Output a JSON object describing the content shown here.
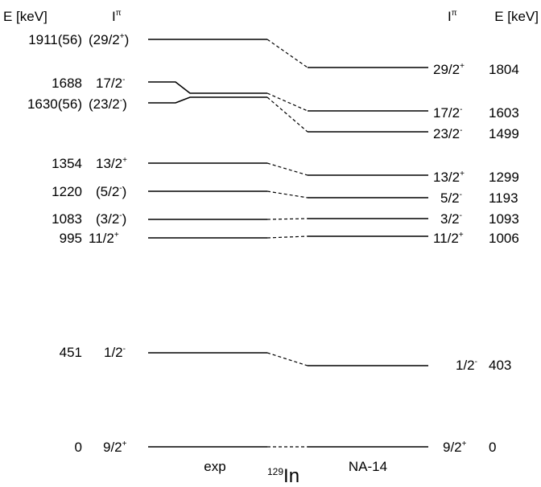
{
  "headers": {
    "left_energy": "E [keV]",
    "left_spin": "I",
    "left_spin_sup": "π",
    "right_spin": "I",
    "right_spin_sup": "π",
    "right_energy": "E [keV]"
  },
  "footer": {
    "exp_label": "exp",
    "nucleus_mass": "129",
    "nucleus_symbol": "In",
    "theory_label": "NA-14"
  },
  "levels": [
    {
      "exp_energy": "1911(56)",
      "exp_spin": "(29/2",
      "exp_spin_sup": "+",
      "exp_spin_tail": ")",
      "th_spin": "29/2",
      "th_spin_sup": "+",
      "th_energy": "1804"
    },
    {
      "exp_energy": "1688",
      "exp_spin": "17/2",
      "exp_spin_sup": "-",
      "exp_spin_tail": "",
      "th_spin": "17/2",
      "th_spin_sup": "-",
      "th_energy": "1603"
    },
    {
      "exp_energy": "1630(56)",
      "exp_spin": "(23/2",
      "exp_spin_sup": "-",
      "exp_spin_tail": ")",
      "th_spin": "23/2",
      "th_spin_sup": "-",
      "th_energy": "1499"
    },
    {
      "exp_energy": "1354",
      "exp_spin": "13/2",
      "exp_spin_sup": "+",
      "exp_spin_tail": "",
      "th_spin": "13/2",
      "th_spin_sup": "+",
      "th_energy": "1299"
    },
    {
      "exp_energy": "1220",
      "exp_spin": "(5/2",
      "exp_spin_sup": "-",
      "exp_spin_tail": ")",
      "th_spin": "5/2",
      "th_spin_sup": "-",
      "th_energy": "1193"
    },
    {
      "exp_energy": "1083",
      "exp_spin": "(3/2",
      "exp_spin_sup": "-",
      "exp_spin_tail": ")",
      "th_spin": "3/2",
      "th_spin_sup": "-",
      "th_energy": "1093"
    },
    {
      "exp_energy": "995",
      "exp_spin": "11/2",
      "exp_spin_sup": "+",
      "exp_spin_tail": "",
      "th_spin": "11/2",
      "th_spin_sup": "+",
      "th_energy": "1006"
    },
    {
      "exp_energy": "451",
      "exp_spin": "1/2",
      "exp_spin_sup": "-",
      "exp_spin_tail": "",
      "th_spin": "1/2",
      "th_spin_sup": "-",
      "th_energy": "403"
    },
    {
      "exp_energy": "0",
      "exp_spin": "9/2",
      "exp_spin_sup": "+",
      "exp_spin_tail": "",
      "th_spin": "9/2",
      "th_spin_sup": "+",
      "th_energy": "0"
    }
  ]
}
